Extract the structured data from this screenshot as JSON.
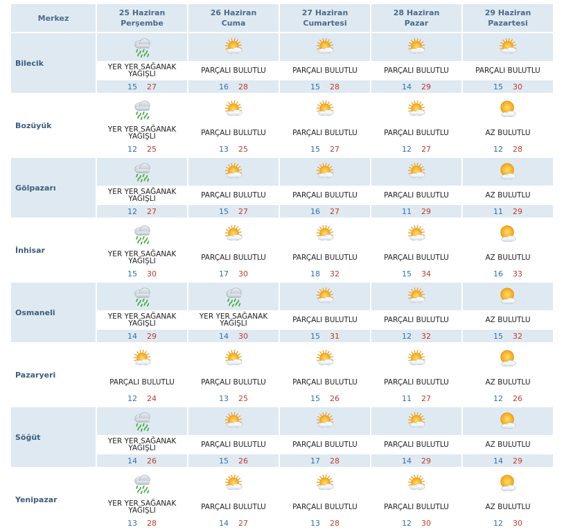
{
  "header": {
    "merkez": "Merkez",
    "days": [
      {
        "date": "25 Haziran",
        "weekday": "Perşembe"
      },
      {
        "date": "26 Haziran",
        "weekday": "Cuma"
      },
      {
        "date": "27 Haziran",
        "weekday": "Cumartesi"
      },
      {
        "date": "28 Haziran",
        "weekday": "Pazar"
      },
      {
        "date": "29 Haziran",
        "weekday": "Pazartesi"
      }
    ]
  },
  "cities": [
    {
      "name": "Bilecik",
      "forecasts": [
        {
          "icon": "rain-cloud-icon",
          "desc": "YER YER SAĞANAK\nYAĞIŞLI",
          "min": "15",
          "max": "27"
        },
        {
          "icon": "partly-cloudy-icon",
          "desc": "PARÇALI BULUTLU",
          "min": "16",
          "max": "28"
        },
        {
          "icon": "partly-cloudy-icon",
          "desc": "PARÇALI BULUTLU",
          "min": "15",
          "max": "28"
        },
        {
          "icon": "partly-cloudy-icon",
          "desc": "PARÇALI BULUTLU",
          "min": "14",
          "max": "29"
        },
        {
          "icon": "partly-cloudy-icon",
          "desc": "PARÇALI BULUTLU",
          "min": "15",
          "max": "30"
        }
      ]
    },
    {
      "name": "Bozüyük",
      "forecasts": [
        {
          "icon": "rain-cloud-icon",
          "desc": "YER YER SAĞANAK\nYAĞIŞLI",
          "min": "12",
          "max": "25"
        },
        {
          "icon": "partly-cloudy-icon",
          "desc": "PARÇALI BULUTLU",
          "min": "13",
          "max": "25"
        },
        {
          "icon": "partly-cloudy-icon",
          "desc": "PARÇALI BULUTLU",
          "min": "15",
          "max": "27"
        },
        {
          "icon": "partly-cloudy-icon",
          "desc": "PARÇALI BULUTLU",
          "min": "12",
          "max": "27"
        },
        {
          "icon": "mostly-sunny-icon",
          "desc": "AZ BULUTLU",
          "min": "12",
          "max": "28"
        }
      ]
    },
    {
      "name": "Gölpazarı",
      "forecasts": [
        {
          "icon": "rain-cloud-icon",
          "desc": "YER YER SAĞANAK\nYAĞIŞLI",
          "min": "12",
          "max": "27"
        },
        {
          "icon": "partly-cloudy-icon",
          "desc": "PARÇALI BULUTLU",
          "min": "15",
          "max": "27"
        },
        {
          "icon": "partly-cloudy-icon",
          "desc": "PARÇALI BULUTLU",
          "min": "16",
          "max": "27"
        },
        {
          "icon": "partly-cloudy-icon",
          "desc": "PARÇALI BULUTLU",
          "min": "11",
          "max": "29"
        },
        {
          "icon": "mostly-sunny-icon",
          "desc": "AZ BULUTLU",
          "min": "11",
          "max": "29"
        }
      ]
    },
    {
      "name": "İnhisar",
      "forecasts": [
        {
          "icon": "rain-cloud-icon",
          "desc": "YER YER SAĞANAK\nYAĞIŞLI",
          "min": "15",
          "max": "30"
        },
        {
          "icon": "partly-cloudy-icon",
          "desc": "PARÇALI BULUTLU",
          "min": "17",
          "max": "30"
        },
        {
          "icon": "partly-cloudy-icon",
          "desc": "PARÇALI BULUTLU",
          "min": "18",
          "max": "32"
        },
        {
          "icon": "partly-cloudy-icon",
          "desc": "PARÇALI BULUTLU",
          "min": "15",
          "max": "34"
        },
        {
          "icon": "mostly-sunny-icon",
          "desc": "AZ BULUTLU",
          "min": "16",
          "max": "33"
        }
      ]
    },
    {
      "name": "Osmaneli",
      "forecasts": [
        {
          "icon": "rain-cloud-icon",
          "desc": "YER YER SAĞANAK\nYAĞIŞLI",
          "min": "14",
          "max": "29"
        },
        {
          "icon": "rain-cloud-icon",
          "desc": "YER YER SAĞANAK\nYAĞIŞLI",
          "min": "14",
          "max": "30"
        },
        {
          "icon": "partly-cloudy-icon",
          "desc": "PARÇALI BULUTLU",
          "min": "15",
          "max": "31"
        },
        {
          "icon": "partly-cloudy-icon",
          "desc": "PARÇALI BULUTLU",
          "min": "12",
          "max": "32"
        },
        {
          "icon": "mostly-sunny-icon",
          "desc": "AZ BULUTLU",
          "min": "15",
          "max": "32"
        }
      ]
    },
    {
      "name": "Pazaryeri",
      "forecasts": [
        {
          "icon": "partly-cloudy-icon",
          "desc": "PARÇALI BULUTLU",
          "min": "12",
          "max": "24"
        },
        {
          "icon": "partly-cloudy-icon",
          "desc": "PARÇALI BULUTLU",
          "min": "13",
          "max": "25"
        },
        {
          "icon": "partly-cloudy-icon",
          "desc": "PARÇALI BULUTLU",
          "min": "15",
          "max": "26"
        },
        {
          "icon": "partly-cloudy-icon",
          "desc": "PARÇALI BULUTLU",
          "min": "11",
          "max": "27"
        },
        {
          "icon": "mostly-sunny-icon",
          "desc": "AZ BULUTLU",
          "min": "12",
          "max": "26"
        }
      ]
    },
    {
      "name": "Söğüt",
      "forecasts": [
        {
          "icon": "rain-cloud-icon",
          "desc": "YER YER SAĞANAK\nYAĞIŞLI",
          "min": "14",
          "max": "26"
        },
        {
          "icon": "partly-cloudy-icon",
          "desc": "PARÇALI BULUTLU",
          "min": "15",
          "max": "26"
        },
        {
          "icon": "partly-cloudy-icon",
          "desc": "PARÇALI BULUTLU",
          "min": "17",
          "max": "28"
        },
        {
          "icon": "partly-cloudy-icon",
          "desc": "PARÇALI BULUTLU",
          "min": "14",
          "max": "29"
        },
        {
          "icon": "mostly-sunny-icon",
          "desc": "AZ BULUTLU",
          "min": "14",
          "max": "29"
        }
      ]
    },
    {
      "name": "Yenipazar",
      "forecasts": [
        {
          "icon": "rain-cloud-icon",
          "desc": "YER YER SAĞANAK\nYAĞIŞLI",
          "min": "13",
          "max": "28"
        },
        {
          "icon": "partly-cloudy-icon",
          "desc": "PARÇALI BULUTLU",
          "min": "14",
          "max": "27"
        },
        {
          "icon": "partly-cloudy-icon",
          "desc": "PARÇALI BULUTLU",
          "min": "13",
          "max": "28"
        },
        {
          "icon": "partly-cloudy-icon",
          "desc": "PARÇALI BULUTLU",
          "min": "12",
          "max": "30"
        },
        {
          "icon": "mostly-sunny-icon",
          "desc": "AZ BULUTLU",
          "min": "12",
          "max": "30"
        }
      ]
    }
  ],
  "colors": {
    "header_bg": "#dfe9f1",
    "city_text": "#3c5e7d",
    "min_temp": "#2f6fb3",
    "max_temp": "#c0392b"
  }
}
